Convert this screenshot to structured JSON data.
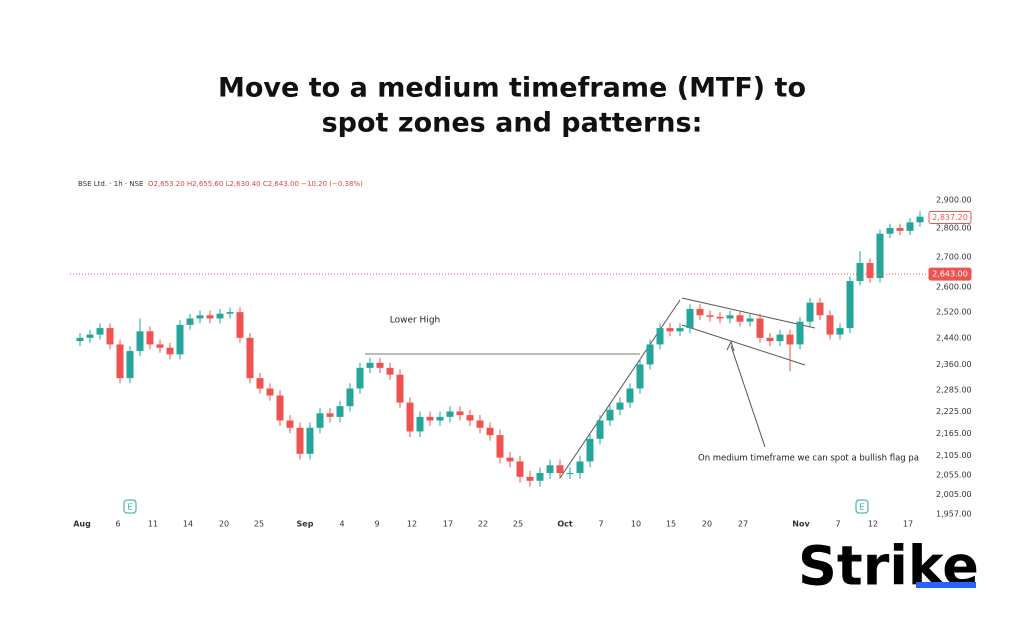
{
  "chart_data": {
    "type": "candlestick",
    "title": [
      "Move to a medium timeframe (MTF) to",
      "spot zones and patterns:"
    ],
    "symbol": "BSE Ltd. · 1h · NSE",
    "ohlc_header": "O2,653.20 H2,655.60 L2,630.40 C2,643.00 −10.20 (−0.38%)",
    "up_color": "#26a69a",
    "down_color": "#ef5350",
    "log_scale": true,
    "grid": false,
    "open": [
      2430,
      2440,
      2450,
      2470,
      2420,
      2320,
      2400,
      2460,
      2420,
      2410,
      2390,
      2480,
      2500,
      2510,
      2500,
      2515,
      2520,
      2440,
      2320,
      2290,
      2270,
      2200,
      2180,
      2110,
      2180,
      2220,
      2210,
      2240,
      2290,
      2350,
      2365,
      2350,
      2330,
      2250,
      2170,
      2210,
      2200,
      2210,
      2225,
      2215,
      2200,
      2180,
      2160,
      2100,
      2090,
      2050,
      2040,
      2060,
      2080,
      2060,
      2060,
      2090,
      2150,
      2200,
      2230,
      2250,
      2290,
      2360,
      2420,
      2470,
      2460,
      2470,
      2530,
      2510,
      2505,
      2500,
      2510,
      2490,
      2500,
      2440,
      2430,
      2450,
      2420,
      2490,
      2550,
      2510,
      2450,
      2470,
      2620,
      2680,
      2630,
      2780,
      2800,
      2790,
      2820
    ],
    "high": [
      2455,
      2465,
      2485,
      2485,
      2435,
      2415,
      2500,
      2475,
      2435,
      2425,
      2495,
      2515,
      2525,
      2525,
      2530,
      2535,
      2535,
      2455,
      2335,
      2305,
      2285,
      2215,
      2195,
      2195,
      2235,
      2235,
      2255,
      2305,
      2365,
      2380,
      2380,
      2365,
      2345,
      2265,
      2225,
      2225,
      2225,
      2240,
      2240,
      2230,
      2215,
      2195,
      2175,
      2115,
      2105,
      2065,
      2075,
      2095,
      2095,
      2075,
      2105,
      2165,
      2215,
      2245,
      2265,
      2305,
      2375,
      2435,
      2485,
      2485,
      2485,
      2545,
      2545,
      2525,
      2520,
      2525,
      2525,
      2515,
      2515,
      2455,
      2465,
      2465,
      2505,
      2565,
      2565,
      2525,
      2485,
      2635,
      2720,
      2695,
      2795,
      2815,
      2815,
      2835,
      2860
    ],
    "low": [
      2415,
      2425,
      2435,
      2405,
      2305,
      2305,
      2385,
      2405,
      2395,
      2375,
      2375,
      2465,
      2485,
      2485,
      2485,
      2500,
      2425,
      2305,
      2275,
      2255,
      2185,
      2165,
      2095,
      2095,
      2165,
      2195,
      2195,
      2225,
      2275,
      2335,
      2335,
      2315,
      2235,
      2155,
      2155,
      2185,
      2185,
      2195,
      2200,
      2185,
      2165,
      2145,
      2085,
      2075,
      2035,
      2025,
      2025,
      2045,
      2045,
      2045,
      2045,
      2075,
      2135,
      2185,
      2215,
      2235,
      2275,
      2345,
      2405,
      2445,
      2445,
      2455,
      2495,
      2490,
      2485,
      2485,
      2475,
      2475,
      2425,
      2415,
      2415,
      2340,
      2405,
      2475,
      2495,
      2435,
      2435,
      2455,
      2605,
      2615,
      2615,
      2765,
      2775,
      2775,
      2805
    ],
    "close": [
      2440,
      2450,
      2470,
      2420,
      2320,
      2400,
      2460,
      2420,
      2410,
      2390,
      2480,
      2500,
      2510,
      2500,
      2515,
      2520,
      2440,
      2320,
      2290,
      2270,
      2200,
      2180,
      2110,
      2180,
      2220,
      2210,
      2240,
      2290,
      2350,
      2365,
      2350,
      2330,
      2250,
      2170,
      2210,
      2200,
      2210,
      2225,
      2215,
      2200,
      2180,
      2160,
      2100,
      2090,
      2050,
      2040,
      2060,
      2080,
      2060,
      2060,
      2090,
      2150,
      2200,
      2230,
      2250,
      2290,
      2360,
      2420,
      2470,
      2460,
      2470,
      2530,
      2510,
      2505,
      2500,
      2510,
      2490,
      2500,
      2440,
      2430,
      2450,
      2420,
      2490,
      2550,
      2510,
      2450,
      2470,
      2620,
      2680,
      2630,
      2780,
      2800,
      2790,
      2820,
      2840
    ],
    "xlim": [
      0,
      85
    ],
    "xticks": [
      {
        "value": 0.7,
        "label": "Aug"
      },
      {
        "value": 4.3,
        "label": "6"
      },
      {
        "value": 7.8,
        "label": "11"
      },
      {
        "value": 11.3,
        "label": "14"
      },
      {
        "value": 14.9,
        "label": "20"
      },
      {
        "value": 18.4,
        "label": "25"
      },
      {
        "value": 23,
        "label": "Sep"
      },
      {
        "value": 26.7,
        "label": "4"
      },
      {
        "value": 30.2,
        "label": "9"
      },
      {
        "value": 33.7,
        "label": "12"
      },
      {
        "value": 37.3,
        "label": "17"
      },
      {
        "value": 40.8,
        "label": "22"
      },
      {
        "value": 44.3,
        "label": "25"
      },
      {
        "value": 49,
        "label": "Oct"
      },
      {
        "value": 52.6,
        "label": "7"
      },
      {
        "value": 56.1,
        "label": "10"
      },
      {
        "value": 59.6,
        "label": "15"
      },
      {
        "value": 63.2,
        "label": "20"
      },
      {
        "value": 66.8,
        "label": "27"
      },
      {
        "value": 72.6,
        "label": "Nov"
      },
      {
        "value": 76.3,
        "label": "7"
      },
      {
        "value": 79.8,
        "label": "12"
      },
      {
        "value": 83.3,
        "label": "17"
      }
    ],
    "ylim": [
      1918,
      2955
    ],
    "yticks": [
      {
        "value": 2900,
        "label": "2,900.00"
      },
      {
        "value": 2800,
        "label": "2,800.00"
      },
      {
        "value": 2700,
        "label": "2,700.00"
      },
      {
        "value": 2600,
        "label": "2,600.00"
      },
      {
        "value": 2520,
        "label": "2,520.00"
      },
      {
        "value": 2440,
        "label": "2,440.00"
      },
      {
        "value": 2360,
        "label": "2,360.00"
      },
      {
        "value": 2285,
        "label": "2,285.00"
      },
      {
        "value": 2225,
        "label": "2,225.00"
      },
      {
        "value": 2165,
        "label": "2,165.00"
      },
      {
        "value": 2105,
        "label": "2,105.00"
      },
      {
        "value": 2055,
        "label": "2,055.00"
      },
      {
        "value": 2005,
        "label": "2,005.00"
      },
      {
        "value": 1957,
        "label": "1,957.00"
      }
    ],
    "price_labels": [
      {
        "value": 2837.2,
        "label": "2,837.20"
      },
      {
        "value": 2643,
        "label": "2,643.00"
      }
    ],
    "annotations": [
      "Lower High",
      "On medium timeframe we can spot a bullish flag pa"
    ],
    "event_label": "E",
    "brand": "Strike"
  }
}
